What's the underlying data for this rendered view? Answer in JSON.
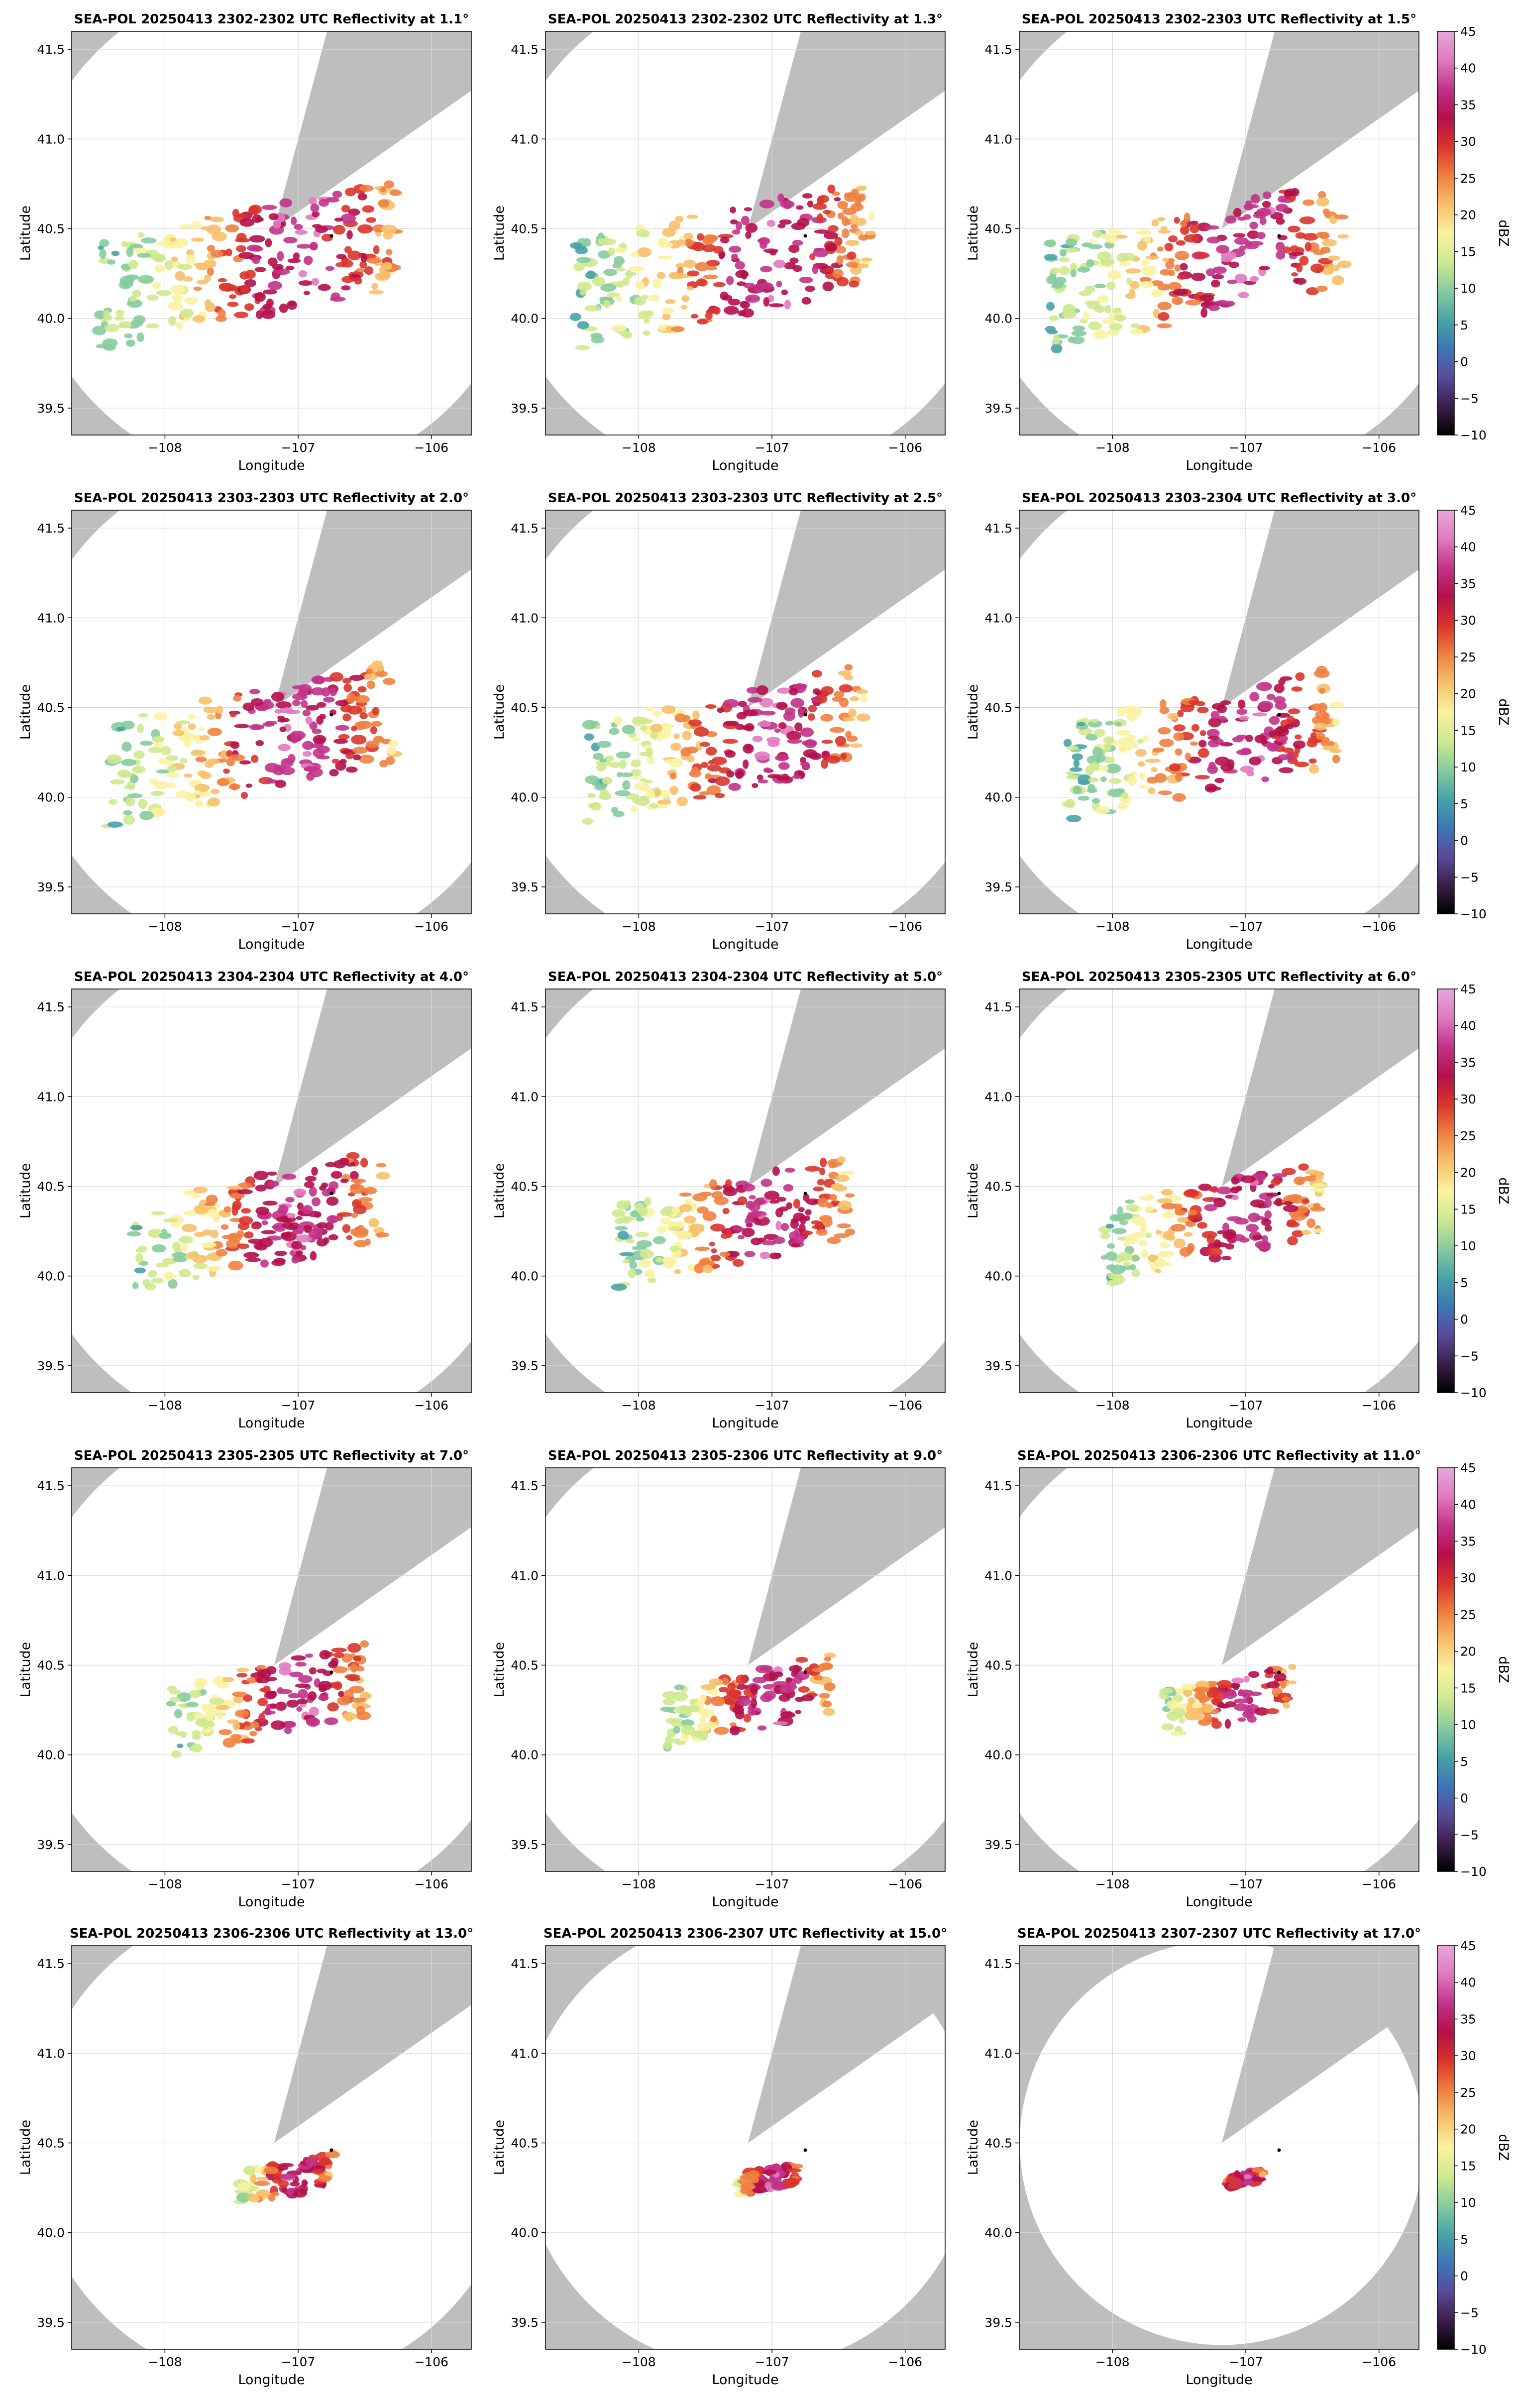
{
  "figure": {
    "xlabel": "Longitude",
    "ylabel": "Latitude",
    "xticks": [
      "−108",
      "−107",
      "−106"
    ],
    "yticks": [
      "39.5",
      "40.0",
      "40.5",
      "41.0",
      "41.5"
    ],
    "colorbar_label": "dBZ",
    "colorbar_ticks": [
      "−10",
      "−5",
      "0",
      "5",
      "10",
      "15",
      "20",
      "25",
      "30",
      "35",
      "40",
      "45"
    ]
  },
  "colors": {
    "background": "#ffffff",
    "out_of_range": "#bebebe",
    "marker": "#000000",
    "colormap_low_to_high": [
      "#000000",
      "#3b1f4a",
      "#5b4a9a",
      "#3b78b5",
      "#4aa3a6",
      "#86cc9e",
      "#cfe98f",
      "#f9f2a1",
      "#f7c06a",
      "#ef7f3f",
      "#d9342b",
      "#b4104a",
      "#c2338a",
      "#e07ac0",
      "#e6a7da"
    ]
  },
  "chart_data": [
    {
      "type": "heatmap",
      "title": "SEA-POL 20250413 2302-2302 UTC Reflectivity at 1.1°",
      "elevation_deg": 1.1,
      "xlim": [
        -108.7,
        -105.7
      ],
      "ylim": [
        39.35,
        41.6
      ],
      "radar_lon": -106.75,
      "radar_lat": 40.46,
      "range_km": 155,
      "colorbar": false,
      "zlim": [
        -10,
        45
      ]
    },
    {
      "type": "heatmap",
      "title": "SEA-POL 20250413 2302-2302 UTC Reflectivity at 1.3°",
      "elevation_deg": 1.3,
      "xlim": [
        -108.7,
        -105.7
      ],
      "ylim": [
        39.35,
        41.6
      ],
      "radar_lon": -106.75,
      "radar_lat": 40.46,
      "range_km": 155,
      "colorbar": false,
      "zlim": [
        -10,
        45
      ]
    },
    {
      "type": "heatmap",
      "title": "SEA-POL 20250413 2302-2303 UTC Reflectivity at 1.5°",
      "elevation_deg": 1.5,
      "xlim": [
        -108.7,
        -105.7
      ],
      "ylim": [
        39.35,
        41.6
      ],
      "radar_lon": -106.75,
      "radar_lat": 40.46,
      "range_km": 155,
      "colorbar": true,
      "zlim": [
        -10,
        45
      ]
    },
    {
      "type": "heatmap",
      "title": "SEA-POL 20250413 2303-2303 UTC Reflectivity at 2.0°",
      "elevation_deg": 2.0,
      "xlim": [
        -108.7,
        -105.7
      ],
      "ylim": [
        39.35,
        41.6
      ],
      "radar_lon": -106.75,
      "radar_lat": 40.46,
      "range_km": 155,
      "colorbar": false,
      "zlim": [
        -10,
        45
      ]
    },
    {
      "type": "heatmap",
      "title": "SEA-POL 20250413 2303-2303 UTC Reflectivity at 2.5°",
      "elevation_deg": 2.5,
      "xlim": [
        -108.7,
        -105.7
      ],
      "ylim": [
        39.35,
        41.6
      ],
      "radar_lon": -106.75,
      "radar_lat": 40.46,
      "range_km": 155,
      "colorbar": false,
      "zlim": [
        -10,
        45
      ]
    },
    {
      "type": "heatmap",
      "title": "SEA-POL 20250413 2303-2304 UTC Reflectivity at 3.0°",
      "elevation_deg": 3.0,
      "xlim": [
        -108.7,
        -105.7
      ],
      "ylim": [
        39.35,
        41.6
      ],
      "radar_lon": -106.75,
      "radar_lat": 40.46,
      "range_km": 155,
      "colorbar": true,
      "zlim": [
        -10,
        45
      ]
    },
    {
      "type": "heatmap",
      "title": "SEA-POL 20250413 2304-2304 UTC Reflectivity at 4.0°",
      "elevation_deg": 4.0,
      "xlim": [
        -108.7,
        -105.7
      ],
      "ylim": [
        39.35,
        41.6
      ],
      "radar_lon": -106.75,
      "radar_lat": 40.46,
      "range_km": 155,
      "colorbar": false,
      "zlim": [
        -10,
        45
      ]
    },
    {
      "type": "heatmap",
      "title": "SEA-POL 20250413 2304-2304 UTC Reflectivity at 5.0°",
      "elevation_deg": 5.0,
      "xlim": [
        -108.7,
        -105.7
      ],
      "ylim": [
        39.35,
        41.6
      ],
      "radar_lon": -106.75,
      "radar_lat": 40.46,
      "range_km": 155,
      "colorbar": false,
      "zlim": [
        -10,
        45
      ]
    },
    {
      "type": "heatmap",
      "title": "SEA-POL 20250413 2305-2305 UTC Reflectivity at 6.0°",
      "elevation_deg": 6.0,
      "xlim": [
        -108.7,
        -105.7
      ],
      "ylim": [
        39.35,
        41.6
      ],
      "radar_lon": -106.75,
      "radar_lat": 40.46,
      "range_km": 155,
      "colorbar": true,
      "zlim": [
        -10,
        45
      ]
    },
    {
      "type": "heatmap",
      "title": "SEA-POL 20250413 2305-2305 UTC Reflectivity at 7.0°",
      "elevation_deg": 7.0,
      "xlim": [
        -108.7,
        -105.7
      ],
      "ylim": [
        39.35,
        41.6
      ],
      "radar_lon": -106.75,
      "radar_lat": 40.46,
      "range_km": 155,
      "colorbar": false,
      "zlim": [
        -10,
        45
      ]
    },
    {
      "type": "heatmap",
      "title": "SEA-POL 20250413 2305-2306 UTC Reflectivity at 9.0°",
      "elevation_deg": 9.0,
      "xlim": [
        -108.7,
        -105.7
      ],
      "ylim": [
        39.35,
        41.6
      ],
      "radar_lon": -106.75,
      "radar_lat": 40.46,
      "range_km": 155,
      "colorbar": false,
      "zlim": [
        -10,
        45
      ]
    },
    {
      "type": "heatmap",
      "title": "SEA-POL 20250413 2306-2306 UTC Reflectivity at 11.0°",
      "elevation_deg": 11.0,
      "xlim": [
        -108.7,
        -105.7
      ],
      "ylim": [
        39.35,
        41.6
      ],
      "radar_lon": -106.75,
      "radar_lat": 40.46,
      "range_km": 155,
      "colorbar": true,
      "zlim": [
        -10,
        45
      ]
    },
    {
      "type": "heatmap",
      "title": "SEA-POL 20250413 2306-2306 UTC Reflectivity at 13.0°",
      "elevation_deg": 13.0,
      "xlim": [
        -108.7,
        -105.7
      ],
      "ylim": [
        39.35,
        41.6
      ],
      "radar_lon": -106.75,
      "radar_lat": 40.46,
      "range_km": 150,
      "colorbar": false,
      "zlim": [
        -10,
        45
      ]
    },
    {
      "type": "heatmap",
      "title": "SEA-POL 20250413 2306-2307 UTC Reflectivity at 15.0°",
      "elevation_deg": 15.0,
      "xlim": [
        -108.7,
        -105.7
      ],
      "ylim": [
        39.35,
        41.6
      ],
      "radar_lon": -106.75,
      "radar_lat": 40.46,
      "range_km": 140,
      "colorbar": false,
      "zlim": [
        -10,
        45
      ]
    },
    {
      "type": "heatmap",
      "title": "SEA-POL 20250413 2307-2307 UTC Reflectivity at 17.0°",
      "elevation_deg": 17.0,
      "xlim": [
        -108.7,
        -105.7
      ],
      "ylim": [
        39.35,
        41.6
      ],
      "radar_lon": -106.75,
      "radar_lat": 40.46,
      "range_km": 125,
      "colorbar": true,
      "zlim": [
        -10,
        45
      ]
    }
  ]
}
